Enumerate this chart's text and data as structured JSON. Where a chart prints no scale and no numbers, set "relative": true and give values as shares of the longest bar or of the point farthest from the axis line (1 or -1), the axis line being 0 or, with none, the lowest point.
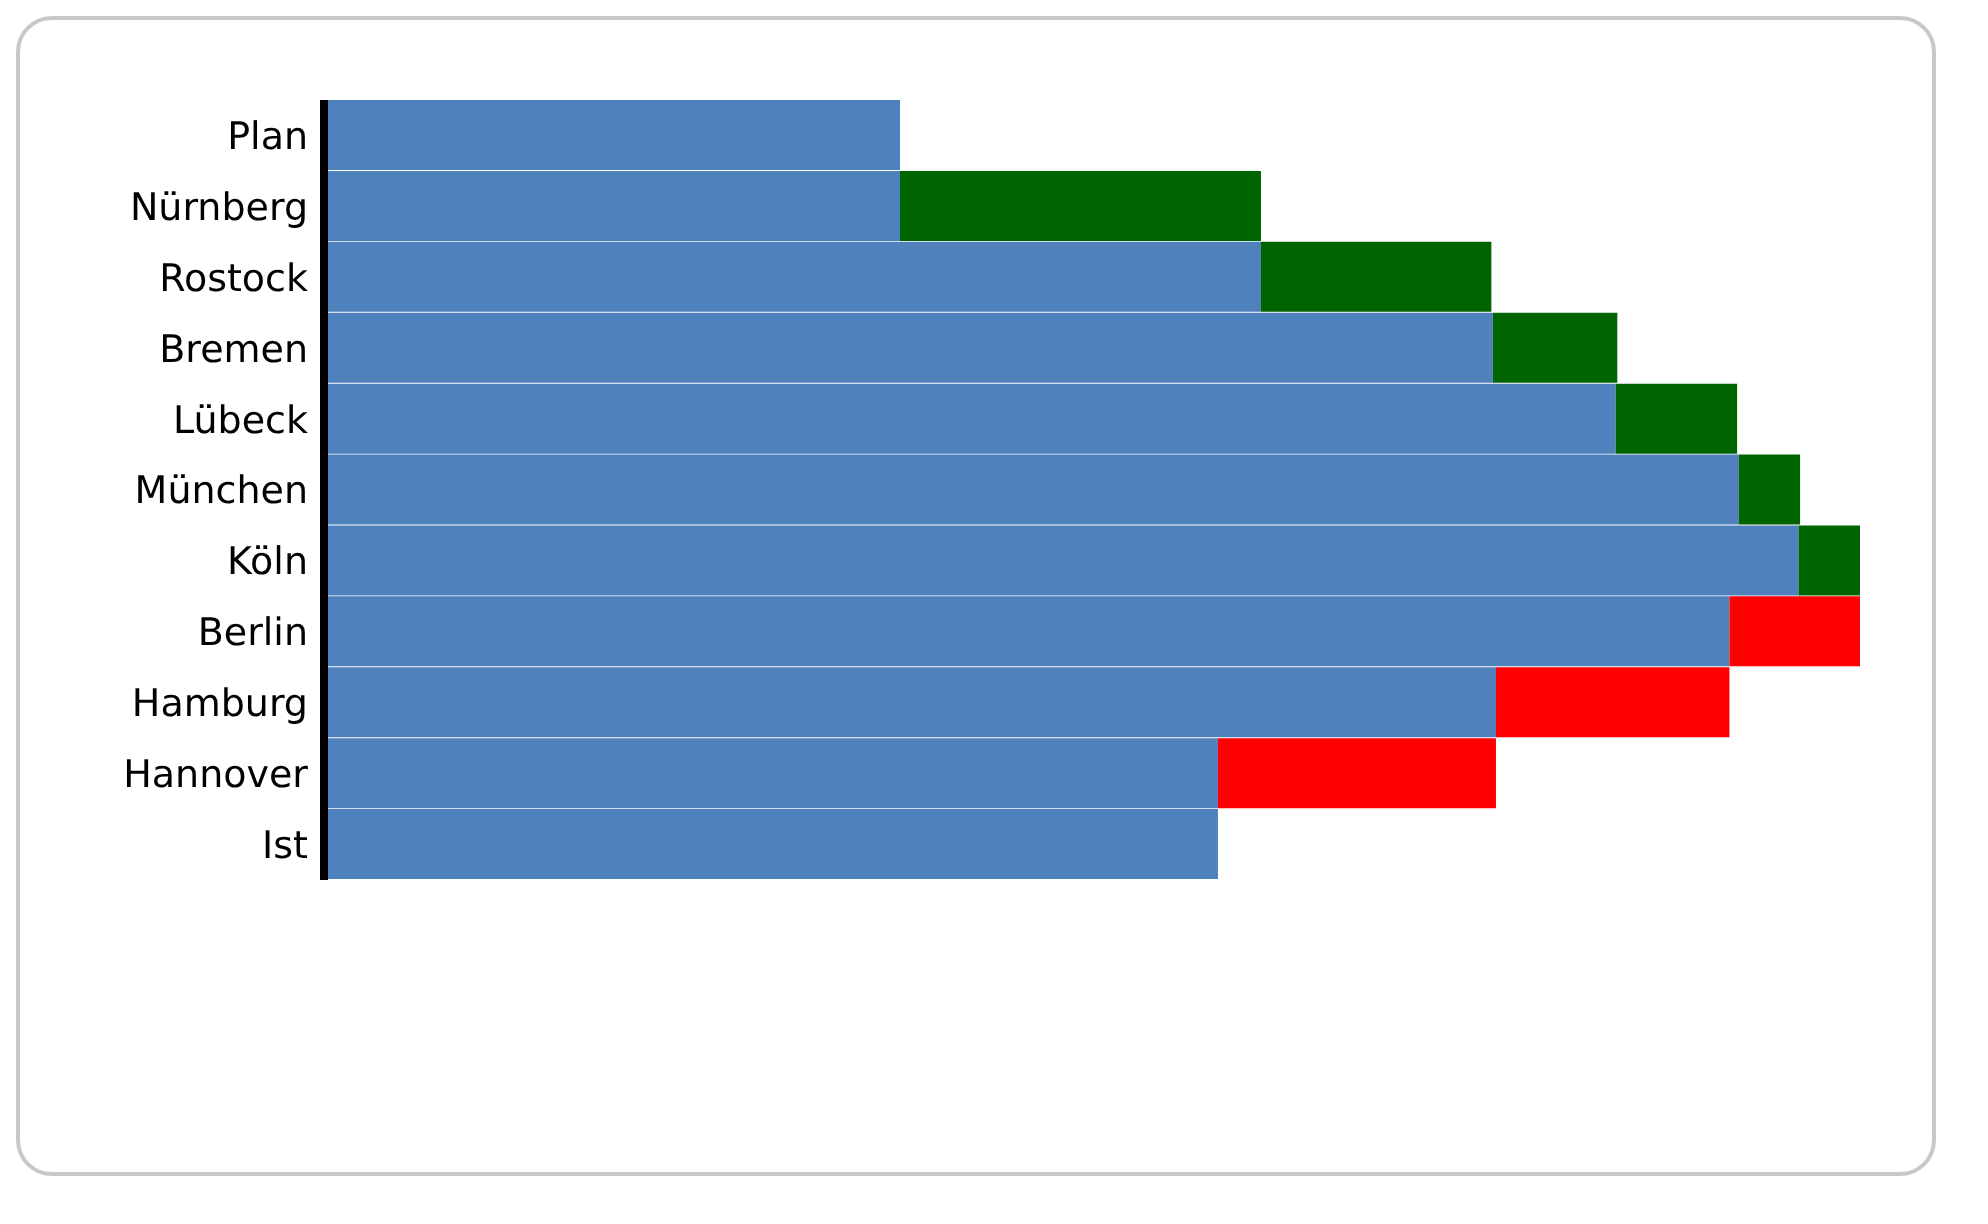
{
  "chart_data": {
    "type": "bar",
    "orientation": "horizontal",
    "stacked": true,
    "relative": true,
    "categories": [
      "Plan",
      "Nürnberg",
      "Rostock",
      "Bremen",
      "Lübeck",
      "München",
      "Köln",
      "Berlin",
      "Hamburg",
      "Hannover",
      "Ist"
    ],
    "series": [
      {
        "color": "#4f81bd",
        "values": [
          0.375,
          0.375,
          0.61,
          0.761,
          0.841,
          0.921,
          0.96,
          0.915,
          0.763,
          0.582,
          0.582
        ]
      },
      {
        "color": "#006400",
        "values": [
          null,
          0.235,
          0.15,
          0.081,
          0.079,
          0.04,
          0.04,
          null,
          null,
          null,
          null
        ]
      },
      {
        "color": "#ff0000",
        "values": [
          null,
          null,
          null,
          null,
          null,
          null,
          null,
          0.085,
          0.152,
          0.181,
          null
        ]
      }
    ]
  }
}
